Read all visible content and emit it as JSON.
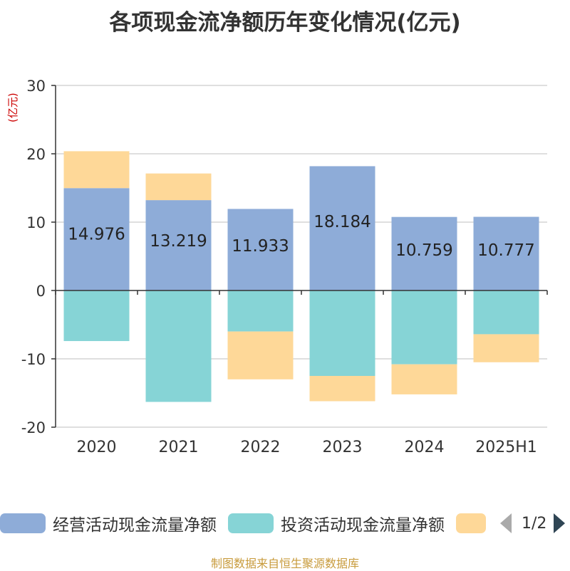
{
  "chart_data": {
    "type": "bar",
    "stacked": true,
    "title": "各项现金流净额历年变化情况(亿元)",
    "ylabel": "(亿元)",
    "ylim": [
      -20,
      30
    ],
    "yticks": [
      30,
      20,
      10,
      0,
      -10,
      -20
    ],
    "categories": [
      "2020",
      "2021",
      "2022",
      "2023",
      "2024",
      "2025H1"
    ],
    "grid": true,
    "series": [
      {
        "name": "经营活动现金流量净额",
        "color": "#8eacd8",
        "values": [
          14.976,
          13.219,
          11.933,
          18.184,
          10.759,
          10.777
        ],
        "labels": [
          "14.976",
          "13.219",
          "11.933",
          "18.184",
          "10.759",
          "10.777"
        ]
      },
      {
        "name": "投资活动现金流量净额",
        "color": "#86d4d6",
        "values": [
          -7.4,
          -16.3,
          -6.0,
          -12.5,
          -10.8,
          -6.4
        ]
      },
      {
        "name": "",
        "color": "#fed898",
        "values": [
          5.4,
          3.9,
          -7.0,
          -3.7,
          -4.4,
          -4.1
        ]
      }
    ]
  },
  "legend": {
    "items": [
      {
        "label": "经营活动现金流量净额",
        "color": "#8eacd8"
      },
      {
        "label": "投资活动现金流量净额",
        "color": "#86d4d6"
      },
      {
        "label": "",
        "color": "#fed898"
      }
    ],
    "page": "1/2"
  },
  "source": "制图数据来自恒生聚源数据库"
}
